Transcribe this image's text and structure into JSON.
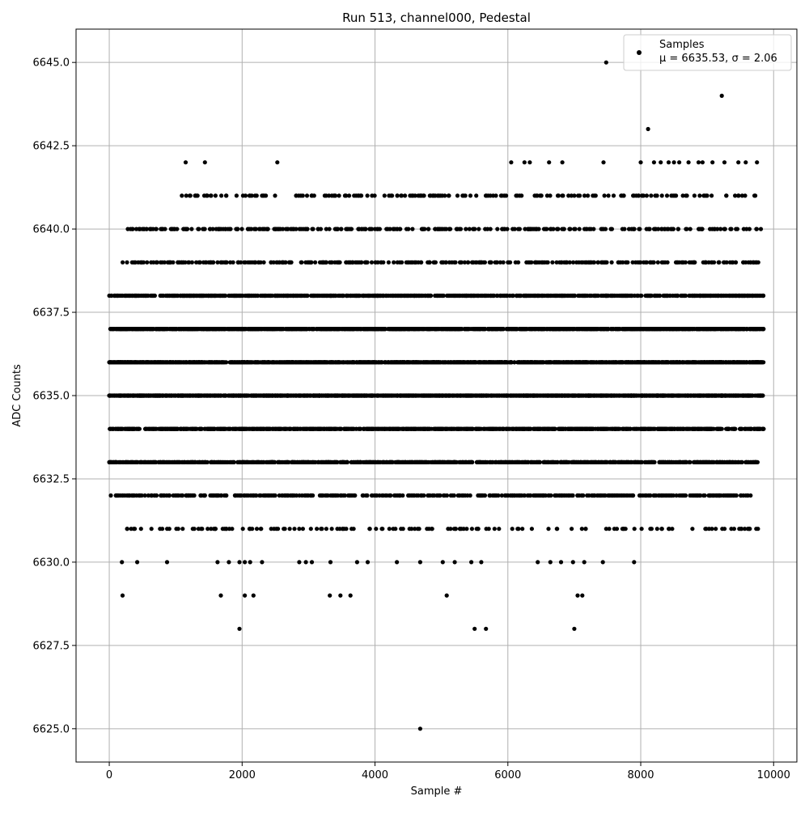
{
  "chart_data": {
    "type": "scatter",
    "title": "Run 513, channel000, Pedestal",
    "xlabel": "Sample #",
    "ylabel": "ADC Counts",
    "xlim": [
      -500,
      10350
    ],
    "ylim": [
      6624.0,
      6646.0
    ],
    "xticks": [
      0,
      2000,
      4000,
      6000,
      8000,
      10000
    ],
    "xtick_labels": [
      "0",
      "2000",
      "4000",
      "6000",
      "8000",
      "10000"
    ],
    "yticks": [
      6625.0,
      6627.5,
      6630.0,
      6632.5,
      6635.0,
      6637.5,
      6640.0,
      6642.5,
      6645.0
    ],
    "ytick_labels": [
      "6625.0",
      "6627.5",
      "6630.0",
      "6632.5",
      "6635.0",
      "6637.5",
      "6640.0",
      "6642.5",
      "6645.0"
    ],
    "grid": true,
    "legend_position": "top-right",
    "series": [
      {
        "name": "Samples",
        "legend_stats": "μ = 6635.53, σ = 2.06",
        "color": "#000000",
        "marker": "circle",
        "n_samples": 9850,
        "levels": [
          {
            "y": 6633,
            "count": 1000,
            "x_min": 0,
            "x_max": 9760
          },
          {
            "y": 6634,
            "count": 1300,
            "x_min": 0,
            "x_max": 9850
          },
          {
            "y": 6635,
            "count": 1700,
            "x_min": 0,
            "x_max": 9850
          },
          {
            "y": 6636,
            "count": 1800,
            "x_min": 0,
            "x_max": 9850
          },
          {
            "y": 6637,
            "count": 1700,
            "x_min": 0,
            "x_max": 9850
          },
          {
            "y": 6638,
            "count": 900,
            "x_min": 0,
            "x_max": 9850
          },
          {
            "y": 6632,
            "count": 520,
            "x_min": 20,
            "x_max": 9700
          },
          {
            "y": 6639,
            "count": 350,
            "x_min": 200,
            "x_max": 9850
          },
          {
            "y": 6640,
            "count": 300,
            "x_min": 250,
            "x_max": 9850
          },
          {
            "y": 6641,
            "count": 180,
            "x_min": 1000,
            "x_max": 9850
          },
          {
            "y": 6631,
            "count": 150,
            "x_min": 100,
            "x_max": 9850
          }
        ],
        "points": [
          [
            7480,
            6645
          ],
          [
            9220,
            6644
          ],
          [
            8110,
            6643
          ],
          [
            1150,
            6642
          ],
          [
            1440,
            6642
          ],
          [
            2530,
            6642
          ],
          [
            6050,
            6642
          ],
          [
            6250,
            6642
          ],
          [
            6330,
            6642
          ],
          [
            6620,
            6642
          ],
          [
            6820,
            6642
          ],
          [
            7440,
            6642
          ],
          [
            8000,
            6642
          ],
          [
            8200,
            6642
          ],
          [
            8300,
            6642
          ],
          [
            8420,
            6642
          ],
          [
            8500,
            6642
          ],
          [
            8580,
            6642
          ],
          [
            8720,
            6642
          ],
          [
            8870,
            6642
          ],
          [
            8930,
            6642
          ],
          [
            9080,
            6642
          ],
          [
            9260,
            6642
          ],
          [
            9470,
            6642
          ],
          [
            9580,
            6642
          ],
          [
            9750,
            6642
          ],
          [
            190,
            6630
          ],
          [
            420,
            6630
          ],
          [
            870,
            6630
          ],
          [
            1630,
            6630
          ],
          [
            1800,
            6630
          ],
          [
            1960,
            6630
          ],
          [
            2040,
            6630
          ],
          [
            2120,
            6630
          ],
          [
            2300,
            6630
          ],
          [
            2860,
            6630
          ],
          [
            2960,
            6630
          ],
          [
            3050,
            6630
          ],
          [
            3330,
            6630
          ],
          [
            3730,
            6630
          ],
          [
            3890,
            6630
          ],
          [
            4330,
            6630
          ],
          [
            4680,
            6630
          ],
          [
            5020,
            6630
          ],
          [
            5200,
            6630
          ],
          [
            5450,
            6630
          ],
          [
            5600,
            6630
          ],
          [
            6450,
            6630
          ],
          [
            6640,
            6630
          ],
          [
            6800,
            6630
          ],
          [
            6980,
            6630
          ],
          [
            7150,
            6630
          ],
          [
            7430,
            6630
          ],
          [
            7900,
            6630
          ],
          [
            200,
            6629
          ],
          [
            1680,
            6629
          ],
          [
            2040,
            6629
          ],
          [
            2170,
            6629
          ],
          [
            3320,
            6629
          ],
          [
            3480,
            6629
          ],
          [
            3630,
            6629
          ],
          [
            5080,
            6629
          ],
          [
            7050,
            6629
          ],
          [
            7120,
            6629
          ],
          [
            1960,
            6628
          ],
          [
            5500,
            6628
          ],
          [
            5670,
            6628
          ],
          [
            7000,
            6628
          ],
          [
            4680,
            6625
          ]
        ]
      }
    ]
  }
}
